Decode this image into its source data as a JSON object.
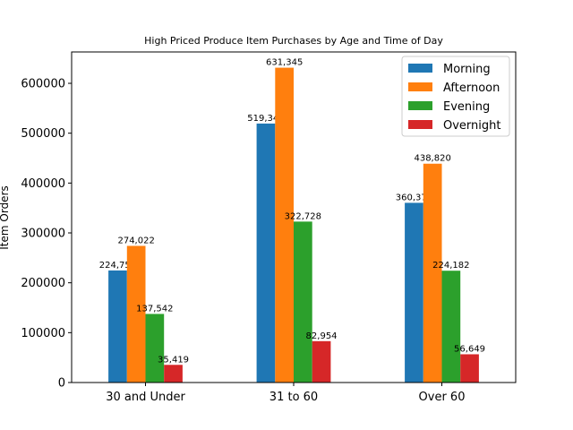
{
  "chart_data": {
    "type": "bar",
    "title": "High Priced Produce Item Purchases by Age and Time of Day",
    "xlabel": "",
    "ylabel": "Item Orders",
    "categories": [
      "30 and Under",
      "31 to 60",
      "Over 60"
    ],
    "series": [
      {
        "name": "Morning",
        "color": "#1f77b4",
        "values": [
          224754,
          519348,
          360375
        ],
        "labels": [
          "224,754",
          "519,348",
          "360,375"
        ]
      },
      {
        "name": "Afternoon",
        "color": "#ff7f0e",
        "values": [
          274022,
          631345,
          438820
        ],
        "labels": [
          "274,022",
          "631,345",
          "438,820"
        ]
      },
      {
        "name": "Evening",
        "color": "#2ca02c",
        "values": [
          137542,
          322728,
          224182
        ],
        "labels": [
          "137,542",
          "322,728",
          "224,182"
        ]
      },
      {
        "name": "Overnight",
        "color": "#d62728",
        "values": [
          35419,
          82954,
          56649
        ],
        "labels": [
          "35,419",
          "82,954",
          "56,649"
        ]
      }
    ],
    "yticks": [
      0,
      100000,
      200000,
      300000,
      400000,
      500000,
      600000
    ],
    "ytick_labels": [
      "0",
      "100000",
      "200000",
      "300000",
      "400000",
      "500000",
      "600000"
    ],
    "ylim": [
      0,
      662912
    ],
    "legend_position": "top-right",
    "grid": false
  }
}
